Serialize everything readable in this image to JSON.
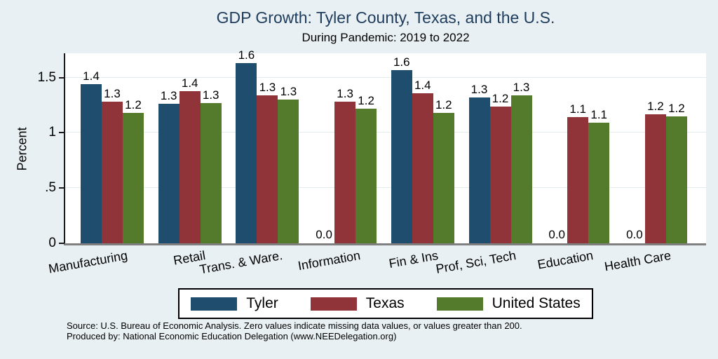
{
  "title": "GDP Growth: Tyler County, Texas, and the U.S.",
  "subtitle": "During Pandemic: 2019 to 2022",
  "source": {
    "line1": "Source: U.S. Bureau of Economic Analysis. Zero values indicate missing data values, or values greater than 200.",
    "line2": "Produced by: National Economic Education Delegation (www.NEEDelegation.org)"
  },
  "colors": {
    "background": "#e9f0f3",
    "plot_background": "#ffffff",
    "title_text": "#1e3c5c",
    "gridline": "#e2ebee",
    "tyler": "#1e4d6e",
    "texas": "#903439",
    "united_states": "#547a2b"
  },
  "chart_data": {
    "type": "bar",
    "title": "GDP Growth: Tyler County, Texas, and the U.S.",
    "subtitle": "During Pandemic: 2019 to 2022",
    "ylabel": "Percent",
    "xlabel": "",
    "ylim": [
      0,
      1.72
    ],
    "grid": true,
    "legend_position": "bottom",
    "categories": [
      "Manufacturing",
      "Retail",
      "Trans. & Ware.",
      "Information",
      "Fin & Ins",
      "Prof, Sci, Tech",
      "Education",
      "Health Care"
    ],
    "yticks": [
      {
        "value": 0,
        "label": "0"
      },
      {
        "value": 0.5,
        "label": ".5"
      },
      {
        "value": 1,
        "label": "1"
      },
      {
        "value": 1.5,
        "label": "1.5"
      }
    ],
    "series": [
      {
        "name": "Tyler",
        "color": "#1e4d6e",
        "values": [
          1.44,
          1.26,
          1.63,
          0.0,
          1.57,
          1.32,
          0.0,
          0.0
        ],
        "labels": [
          "1.4",
          "1.3",
          "1.6",
          "0.0",
          "1.6",
          "1.3",
          "0.0",
          "0.0"
        ]
      },
      {
        "name": "Texas",
        "color": "#903439",
        "values": [
          1.28,
          1.38,
          1.34,
          1.28,
          1.36,
          1.24,
          1.14,
          1.17
        ],
        "labels": [
          "1.3",
          "1.4",
          "1.3",
          "1.3",
          "1.4",
          "1.2",
          "1.1",
          "1.2"
        ]
      },
      {
        "name": "United States",
        "color": "#547a2b",
        "values": [
          1.18,
          1.27,
          1.3,
          1.22,
          1.18,
          1.34,
          1.09,
          1.15
        ],
        "labels": [
          "1.2",
          "1.3",
          "1.3",
          "1.2",
          "1.2",
          "1.3",
          "1.1",
          "1.2"
        ]
      }
    ]
  }
}
